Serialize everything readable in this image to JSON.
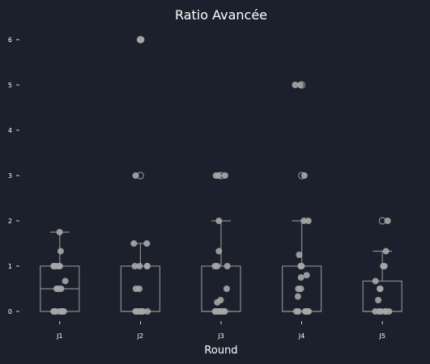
{
  "chart_data": {
    "type": "box",
    "title": "Ratio Avancée",
    "xlabel": "Round",
    "ylabel": "",
    "ylim": [
      -0.3,
      6.4
    ],
    "yticks": [
      0,
      1,
      2,
      3,
      4,
      5,
      6
    ],
    "categories": [
      "J1",
      "J2",
      "J3",
      "J4",
      "J5"
    ],
    "boxes": [
      {
        "category": "J1",
        "whislo": 0,
        "q1": 0,
        "med": 0.5,
        "q3": 1,
        "whishi": 1.75,
        "fliers": []
      },
      {
        "category": "J2",
        "whislo": 0,
        "q1": 0,
        "med": 0,
        "q3": 1,
        "whishi": 1.5,
        "fliers": [
          3,
          6
        ]
      },
      {
        "category": "J3",
        "whislo": 0,
        "q1": 0,
        "med": 0,
        "q3": 1,
        "whishi": 2,
        "fliers": [
          3
        ]
      },
      {
        "category": "J4",
        "whislo": 0,
        "q1": 0,
        "med": 0,
        "q3": 1,
        "whishi": 2,
        "fliers": [
          3,
          5
        ]
      },
      {
        "category": "J5",
        "whislo": 0,
        "q1": 0,
        "med": 0,
        "q3": 0.67,
        "whishi": 1.33,
        "fliers": [
          2
        ]
      }
    ],
    "points": [
      {
        "category": "J1",
        "values": [
          1.75,
          1.33,
          1,
          1,
          1,
          1,
          1,
          0.67,
          0.5,
          0.5,
          0.5,
          0,
          0,
          0,
          0,
          0,
          0,
          0
        ]
      },
      {
        "category": "J2",
        "values": [
          6,
          6,
          3,
          1.5,
          1.5,
          1,
          1,
          1,
          1,
          0.5,
          0.5,
          0,
          0,
          0,
          0,
          0,
          0,
          0,
          0
        ]
      },
      {
        "category": "J3",
        "values": [
          3,
          3,
          3,
          2,
          1.33,
          1,
          1,
          1,
          0.5,
          0.25,
          0.2,
          0,
          0,
          0,
          0,
          0,
          0,
          0,
          0
        ]
      },
      {
        "category": "J4",
        "values": [
          5,
          5,
          3,
          2,
          2,
          1.25,
          1,
          1,
          1,
          0.8,
          0.75,
          0.5,
          0.5,
          0.33,
          0,
          0,
          0,
          0,
          0,
          0,
          0
        ]
      },
      {
        "category": "J5",
        "values": [
          2,
          1.33,
          1,
          1,
          0.67,
          0.5,
          0.5,
          0.25,
          0,
          0,
          0,
          0,
          0,
          0
        ]
      }
    ],
    "grid": false,
    "legend": "none",
    "colors": {
      "background": "#1b202c",
      "box": "#8a8a8a",
      "points": "#a6a6a6",
      "text": "#ffffff"
    }
  }
}
